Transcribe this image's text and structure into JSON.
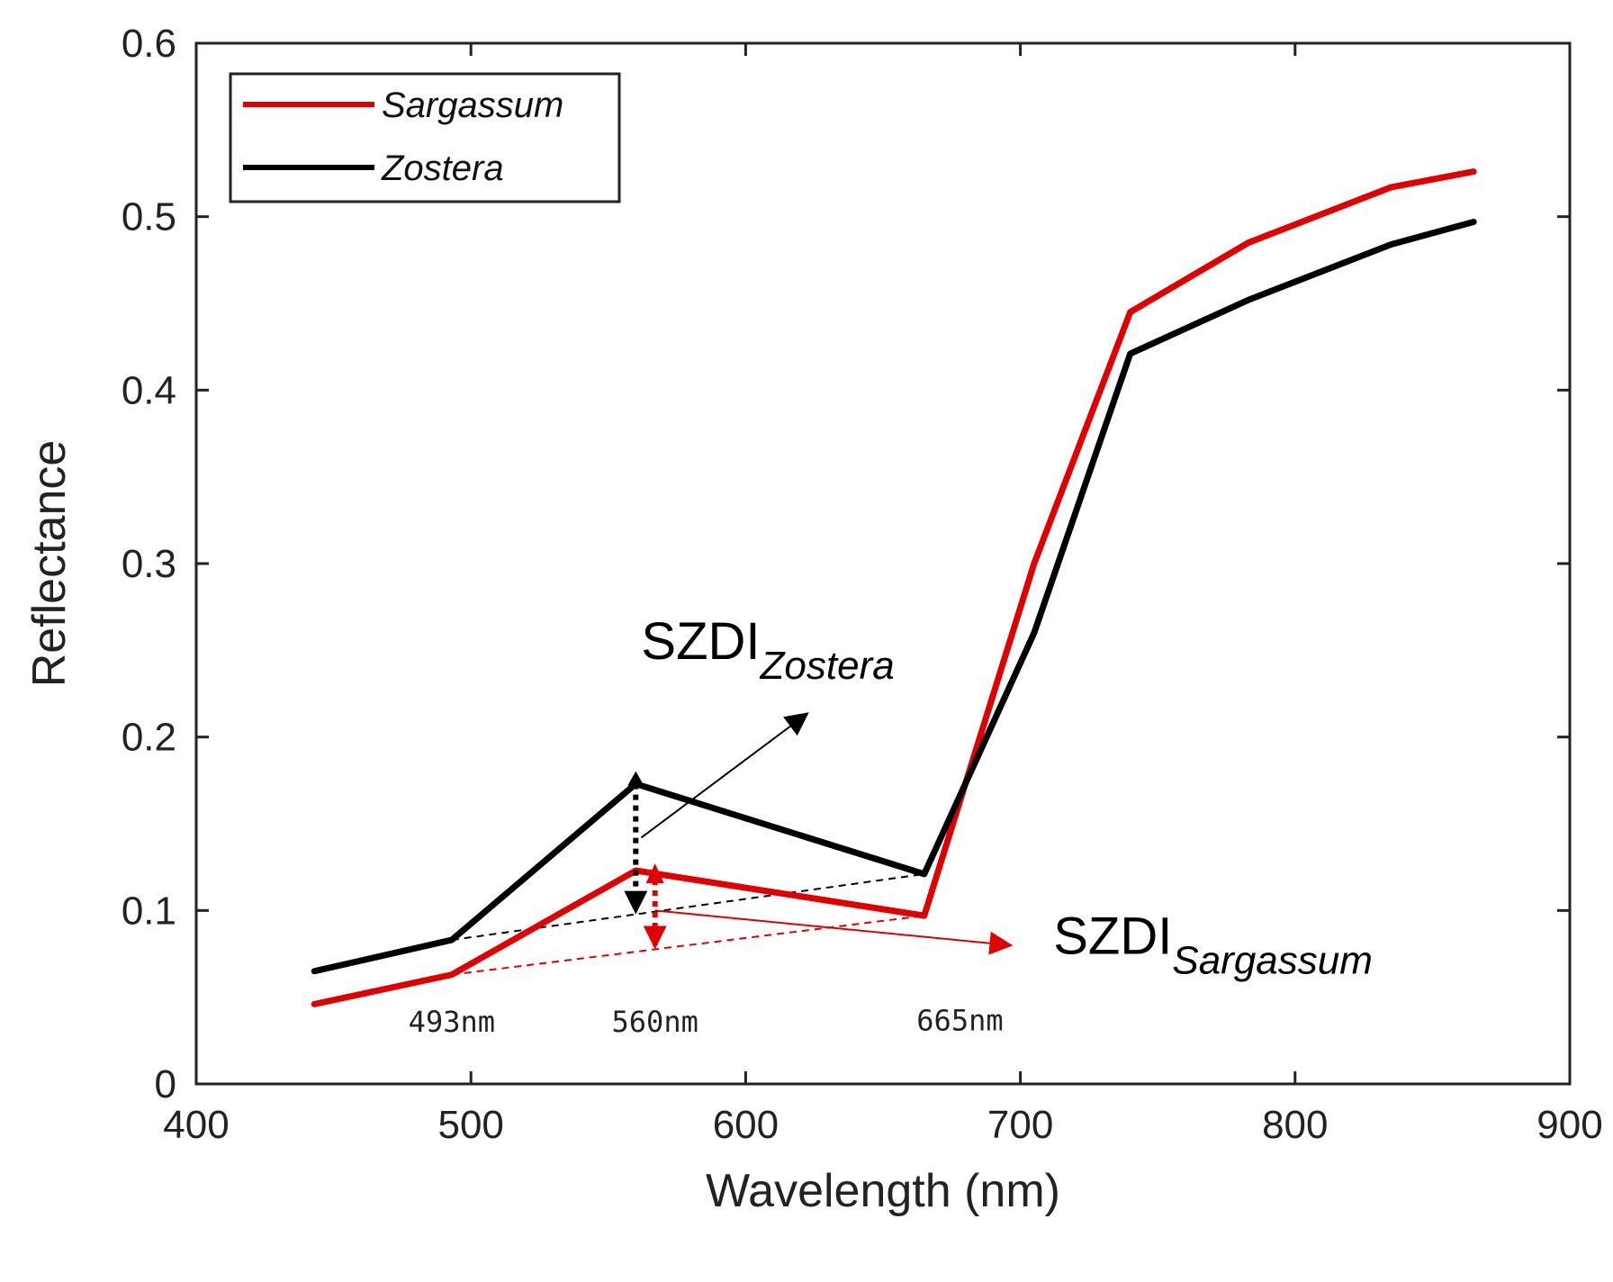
{
  "chart_data": {
    "type": "line",
    "xlabel": "Wavelength (nm)",
    "ylabel": "Reflectance",
    "xlim": [
      400,
      900
    ],
    "ylim": [
      0,
      0.6
    ],
    "x_ticks": [
      400,
      500,
      600,
      700,
      800,
      900
    ],
    "y_ticks": [
      0,
      0.1,
      0.2,
      0.3,
      0.4,
      0.5,
      0.6
    ],
    "x_tick_labels": [
      "400",
      "500",
      "600",
      "700",
      "800",
      "900"
    ],
    "y_tick_labels": [
      "0",
      "0.1",
      "0.2",
      "0.3",
      "0.4",
      "0.5",
      "0.6"
    ],
    "grid": false,
    "legend_position": "top-left",
    "series": [
      {
        "name": "Sargassum",
        "color": "#e00000",
        "x": [
          443,
          493,
          560,
          665,
          705,
          740,
          783,
          835,
          865
        ],
        "values": [
          0.046,
          0.063,
          0.123,
          0.097,
          0.3,
          0.445,
          0.485,
          0.517,
          0.526
        ]
      },
      {
        "name": "Zostera",
        "color": "#000000",
        "x": [
          443,
          493,
          560,
          665,
          705,
          740,
          783,
          835,
          865
        ],
        "values": [
          0.065,
          0.083,
          0.173,
          0.121,
          0.26,
          0.421,
          0.452,
          0.484,
          0.497
        ]
      }
    ],
    "baselines": [
      {
        "series": "Sargassum",
        "color": "#e00000",
        "from": [
          493,
          0.063
        ],
        "to": [
          665,
          0.097
        ]
      },
      {
        "series": "Zostera",
        "color": "#000000",
        "from": [
          493,
          0.083
        ],
        "to": [
          665,
          0.121
        ]
      }
    ],
    "band_labels": [
      {
        "text": "493nm",
        "x": 493,
        "y": 0.03
      },
      {
        "text": "560nm",
        "x": 567,
        "y": 0.03
      },
      {
        "text": "665nm",
        "x": 678,
        "y": 0.031
      }
    ],
    "annotations": {
      "zostera": {
        "main": "SZDI",
        "sub": "Zostera",
        "x": 562,
        "y": 0.245
      },
      "sargassum": {
        "main": "SZDI",
        "sub": "Sargassum",
        "x": 712,
        "y": 0.075
      }
    }
  }
}
